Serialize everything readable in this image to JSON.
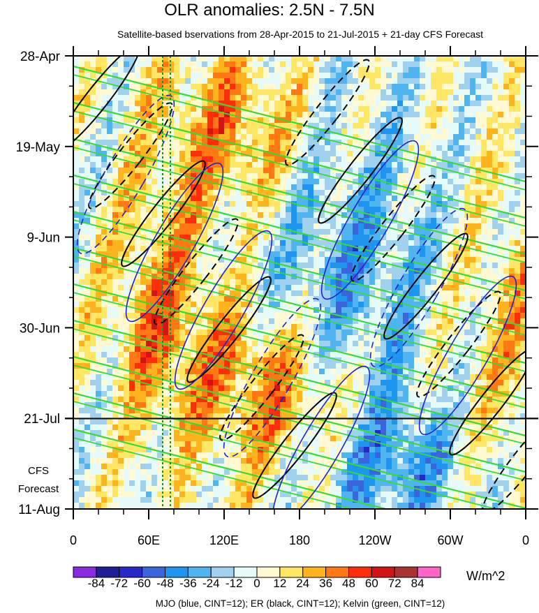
{
  "title": "OLR anomalies: 2.5N - 7.5N",
  "subtitle": "Satellite-based bservations from 28-Apr-2015 to 21-Jul-2015 + 21-day CFS Forecast",
  "forecast_label": [
    "CFS",
    "Forecast"
  ],
  "unit": "W/m^2",
  "footer": "MJO (blue, CINT=12); ER (black, CINT=12); Kelvin (green, CINT=12)",
  "chart_data": {
    "type": "heatmap",
    "title": "OLR anomalies: 2.5N - 7.5N",
    "x_ticks": [
      "0",
      "60E",
      "120E",
      "180",
      "120W",
      "60W",
      "0"
    ],
    "x_values": [
      0,
      60,
      120,
      180,
      240,
      300,
      360
    ],
    "y_ticks": [
      "28-Apr",
      "19-May",
      "9-Jun",
      "30-Jun",
      "21-Jul",
      "11-Aug"
    ],
    "y_days": [
      0,
      21,
      42,
      63,
      84,
      105
    ],
    "observation_end": "21-Jul",
    "colorbar": {
      "labels": [
        "-84",
        "-72",
        "-60",
        "-48",
        "-36",
        "-24",
        "-12",
        "0",
        "12",
        "24",
        "36",
        "48",
        "60",
        "72",
        "84"
      ],
      "colors": [
        "#8a2be2",
        "#1e1e96",
        "#2828c8",
        "#3c64dc",
        "#1e96f0",
        "#50b4f0",
        "#a0d2f0",
        "#e6fafa",
        "#fffad2",
        "#ffe664",
        "#ffb41e",
        "#ff7814",
        "#ff2d0a",
        "#d21414",
        "#aa3232",
        "#ff64c8"
      ]
    },
    "overlays": {
      "mjo": "blue",
      "er": "black",
      "kelvin": "green"
    }
  }
}
